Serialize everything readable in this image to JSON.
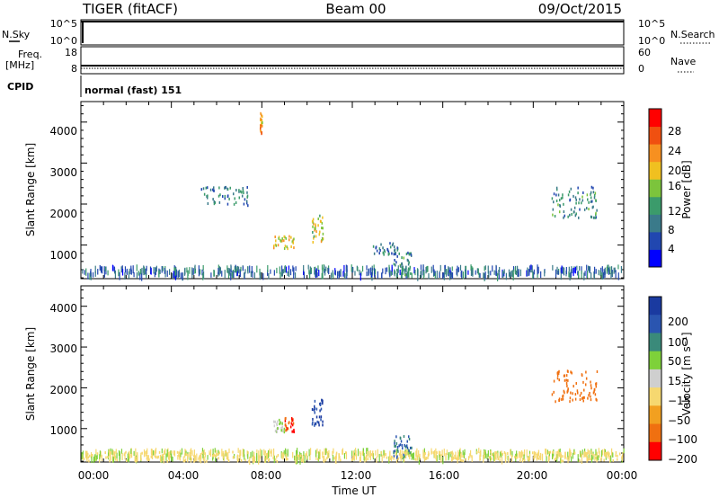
{
  "header": {
    "title_left": "TIGER (fitACF)",
    "title_center": "Beam 00",
    "title_right": "09/Oct/2015"
  },
  "top_panels": {
    "nsky_label": "N.Sky",
    "nsearch_label": "N.Search",
    "nsky_ticks": [
      "10^5",
      "10^0"
    ],
    "nsearch_ticks": [
      "10^5",
      "10^0"
    ],
    "freq_label_line1": "Freq.",
    "freq_label_line2": "[MHz]",
    "freq_ticks": [
      "18",
      "8"
    ],
    "nave_label": "Nave",
    "nave_ticks": [
      "60",
      "0"
    ],
    "cpid_label": "CPID",
    "cpid_text": "normal (fast) 151"
  },
  "chart_data": [
    {
      "type": "heatmap",
      "name": "power",
      "xlabel": "",
      "ylabel": "Slant Range [km]",
      "x_ticks": [
        "00:00",
        "04:00",
        "08:00",
        "12:00",
        "16:00",
        "20:00",
        "00:00"
      ],
      "y_ticks": [
        "1000",
        "2000",
        "3000",
        "4000"
      ],
      "xlim_hours": [
        0,
        24
      ],
      "ylim_km": [
        180,
        4500
      ],
      "colorbar": {
        "label": "Power [dB]",
        "ticks": [
          "4",
          "8",
          "12",
          "16",
          "20",
          "24",
          "28"
        ],
        "range": [
          0,
          32
        ],
        "colors": [
          "#0000ff",
          "#2147b0",
          "#3a7a8a",
          "#3b9b6b",
          "#7cc43c",
          "#f0c020",
          "#f79020",
          "#f05010",
          "#ff0000"
        ]
      },
      "clusters": [
        {
          "t": [
            8.5,
            9.4
          ],
          "r": [
            900,
            1200
          ],
          "value": 20
        },
        {
          "t": [
            10.2,
            10.7
          ],
          "r": [
            1050,
            1700
          ],
          "value": 18
        },
        {
          "t": [
            5.3,
            7.4
          ],
          "r": [
            1950,
            2400
          ],
          "value": 9
        },
        {
          "t": [
            12.8,
            14.0
          ],
          "r": [
            750,
            1050
          ],
          "value": 8
        },
        {
          "t": [
            13.8,
            14.6
          ],
          "r": [
            250,
            800
          ],
          "value": 10
        },
        {
          "t": [
            20.8,
            22.8
          ],
          "r": [
            1650,
            2400
          ],
          "value": 10
        },
        {
          "t": [
            7.9,
            8.0
          ],
          "r": [
            3700,
            4200
          ],
          "value": 22
        }
      ]
    },
    {
      "type": "heatmap",
      "name": "velocity",
      "xlabel": "Time UT",
      "ylabel": "Slant Range [km]",
      "x_ticks": [
        "00:00",
        "04:00",
        "08:00",
        "12:00",
        "16:00",
        "20:00",
        "00:00"
      ],
      "y_ticks": [
        "1000",
        "2000",
        "3000",
        "4000"
      ],
      "xlim_hours": [
        0,
        24
      ],
      "ylim_km": [
        180,
        4500
      ],
      "colorbar": {
        "label": "Velocity [m s⁻¹]",
        "ticks": [
          "200",
          "100",
          "50",
          "15",
          "−15",
          "−50",
          "−100",
          "−200"
        ],
        "colors": [
          "#1a3aa0",
          "#2a55b0",
          "#3a8a7a",
          "#7ed13a",
          "#cfcfcf",
          "#f6d870",
          "#f2a020",
          "#f07010",
          "#ff0000"
        ]
      },
      "clusters": [
        {
          "t": [
            8.5,
            9.0
          ],
          "r": [
            900,
            1200
          ],
          "value": 15
        },
        {
          "t": [
            9.0,
            9.4
          ],
          "r": [
            900,
            1250
          ],
          "value": -200
        },
        {
          "t": [
            10.2,
            10.7
          ],
          "r": [
            1050,
            1700
          ],
          "value": 200
        },
        {
          "t": [
            20.8,
            22.8
          ],
          "r": [
            1650,
            2400
          ],
          "value": -150
        },
        {
          "t": [
            13.8,
            14.6
          ],
          "r": [
            250,
            800
          ],
          "value": 100
        },
        {
          "t": [
            0,
            24
          ],
          "r": [
            180,
            420
          ],
          "value": -30
        }
      ]
    }
  ]
}
